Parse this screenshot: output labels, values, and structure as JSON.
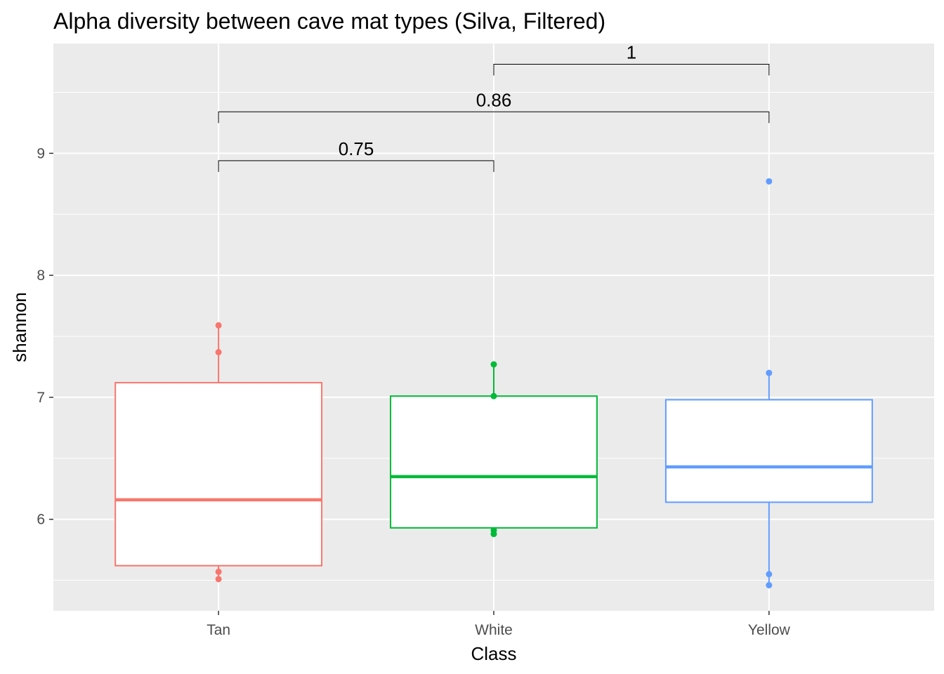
{
  "chart_data": {
    "type": "box",
    "title": "Alpha diversity between cave mat types (Silva, Filtered)",
    "xlabel": "Class",
    "ylabel": "shannon",
    "categories": [
      "Tan",
      "White",
      "Yellow"
    ],
    "ylim": [
      5.25,
      9.9
    ],
    "y_ticks": [
      6,
      7,
      8,
      9
    ],
    "grid": true,
    "background": "#ebebeb",
    "colors": {
      "Tan": "#f8766d",
      "White": "#00ba38",
      "Yellow": "#619cff"
    },
    "boxes": [
      {
        "name": "Tan",
        "q1": 5.62,
        "median": 6.16,
        "q3": 7.12,
        "whisker_low": 5.51,
        "whisker_high": 7.59,
        "points": [
          7.59,
          7.37,
          5.57,
          5.51
        ]
      },
      {
        "name": "White",
        "q1": 5.93,
        "median": 6.35,
        "q3": 7.01,
        "whisker_low": 5.88,
        "whisker_high": 7.27,
        "points": [
          7.27,
          7.01,
          5.91,
          5.88
        ]
      },
      {
        "name": "Yellow",
        "q1": 6.14,
        "median": 6.43,
        "q3": 6.98,
        "whisker_low": 5.46,
        "whisker_high": 7.2,
        "points": [
          8.77,
          7.2,
          5.55,
          5.46
        ]
      }
    ],
    "comparisons": [
      {
        "from": "Tan",
        "to": "White",
        "label": "0.75",
        "y": 8.94
      },
      {
        "from": "Tan",
        "to": "Yellow",
        "label": "0.86",
        "y": 9.34
      },
      {
        "from": "White",
        "to": "Yellow",
        "label": "1",
        "y": 9.73
      }
    ]
  }
}
